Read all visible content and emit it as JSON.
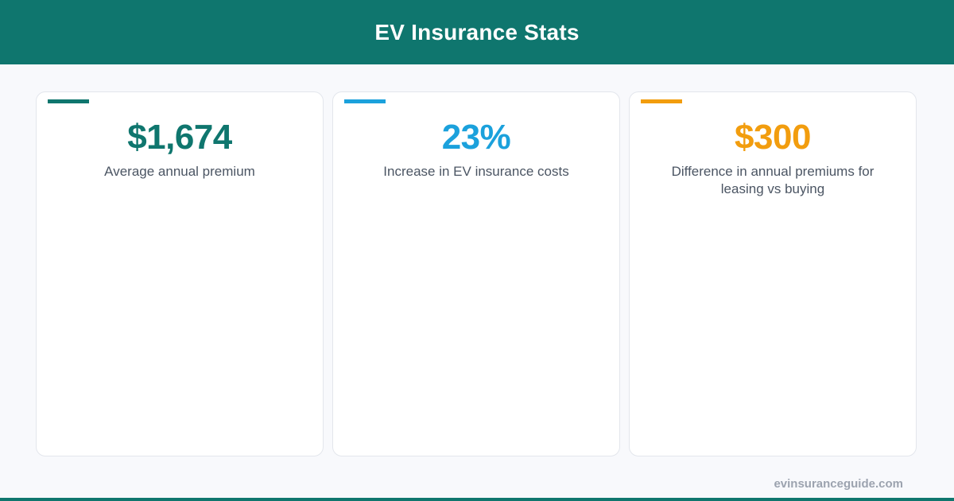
{
  "header": {
    "title": "EV Insurance Stats"
  },
  "colors": {
    "brand": "#0f766e",
    "accent_blue": "#1ba1dc",
    "accent_orange": "#f29d0e"
  },
  "stats": [
    {
      "value": "$1,674",
      "label": "Average annual premium",
      "color": "#0f766e"
    },
    {
      "value": "23%",
      "label": "Increase in EV insurance costs",
      "color": "#1ba1dc"
    },
    {
      "value": "$300",
      "label": "Difference in annual premiums for leasing vs buying",
      "color": "#f29d0e"
    }
  ],
  "footer": {
    "site": "evinsuranceguide.com"
  }
}
